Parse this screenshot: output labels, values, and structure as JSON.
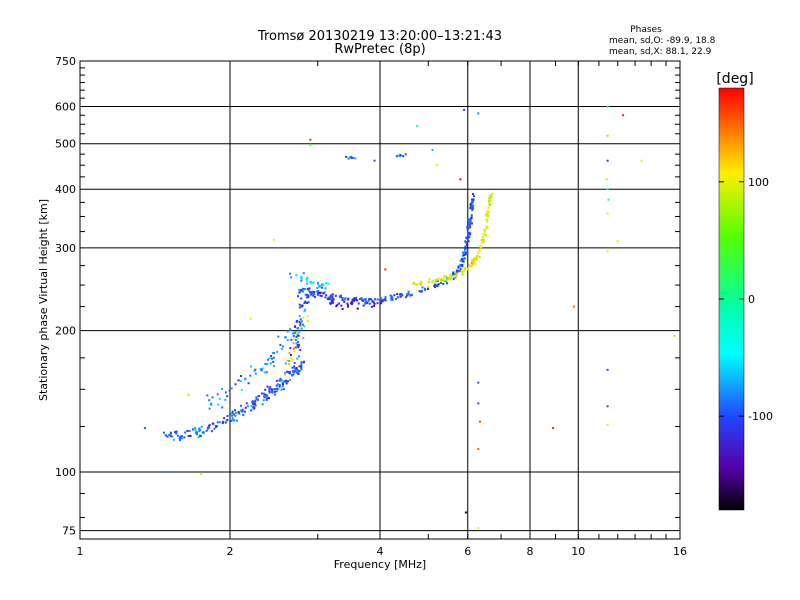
{
  "chart_data": {
    "type": "scatter",
    "title": "Tromsø 20130219 13:20:00–13:21:43",
    "subtitle": "RwPretec (8p)",
    "xlabel": "Frequency [MHz]",
    "ylabel": "Stationary phase Virtual Height [km]",
    "x_scale": "log",
    "y_scale": "log",
    "xlim": [
      1,
      16
    ],
    "ylim": [
      72,
      750
    ],
    "x_ticks": [
      1,
      2,
      4,
      6,
      8,
      10,
      16
    ],
    "x_tick_labels": [
      "1",
      "2",
      "4",
      "6",
      "8",
      "10",
      "16"
    ],
    "y_ticks": [
      75,
      100,
      200,
      300,
      400,
      500,
      600,
      750
    ],
    "y_tick_labels": [
      "75",
      "100",
      "200",
      "300",
      "400",
      "500",
      "600",
      "750"
    ],
    "grid": true,
    "stats": {
      "heading": "Phases",
      "line_o": "mean, sd,O: -89.9, 18.8",
      "line_x": "mean, sd,X:  88.1, 22.9"
    },
    "colorbar": {
      "label": "[deg]",
      "range": [
        -180,
        180
      ],
      "ticks": [
        100,
        0,
        -100
      ],
      "tick_labels": [
        "100",
        "0",
        "-100"
      ]
    },
    "traces": [
      {
        "segments": [
          [
            1.5,
            122
          ],
          [
            1.6,
            119
          ],
          [
            1.75,
            122
          ],
          [
            1.9,
            126
          ],
          [
            2.05,
            132
          ],
          [
            2.2,
            138
          ],
          [
            2.35,
            145
          ],
          [
            2.5,
            152
          ],
          [
            2.65,
            160
          ],
          [
            2.8,
            170
          ]
        ],
        "phase": -95,
        "count": 200,
        "jitter_x": 0.025,
        "jitter_y": 0.035
      },
      {
        "segments": [
          [
            1.8,
            140
          ],
          [
            2.0,
            148
          ],
          [
            2.2,
            160
          ],
          [
            2.4,
            172
          ],
          [
            2.6,
            190
          ],
          [
            2.75,
            205
          ]
        ],
        "phase": -85,
        "count": 70,
        "jitter_x": 0.045,
        "jitter_y": 0.06
      },
      {
        "segments": [
          [
            2.6,
            155
          ],
          [
            2.7,
            180
          ],
          [
            2.75,
            205
          ],
          [
            2.8,
            230
          ],
          [
            2.9,
            245
          ]
        ],
        "phase": -95,
        "count": 55,
        "jitter_x": 0.03,
        "jitter_y": 0.05
      },
      {
        "segments": [
          [
            2.55,
            165
          ],
          [
            2.65,
            180
          ],
          [
            2.75,
            195
          ],
          [
            2.85,
            215
          ]
        ],
        "phase": 110,
        "count": 18,
        "jitter_x": 0.02,
        "jitter_y": 0.05
      },
      {
        "segments": [
          [
            2.65,
            265
          ],
          [
            2.9,
            255
          ],
          [
            3.1,
            246
          ]
        ],
        "phase": -60,
        "count": 30,
        "jitter_x": 0.03,
        "jitter_y": 0.03
      },
      {
        "segments": [
          [
            2.75,
            245
          ],
          [
            3.0,
            240
          ],
          [
            3.3,
            235
          ],
          [
            3.6,
            231
          ],
          [
            4.0,
            232
          ],
          [
            4.5,
            238
          ],
          [
            5.0,
            246
          ],
          [
            5.4,
            255
          ],
          [
            5.7,
            265
          ],
          [
            5.85,
            280
          ],
          [
            5.95,
            300
          ],
          [
            6.05,
            330
          ],
          [
            6.1,
            360
          ],
          [
            6.15,
            390
          ]
        ],
        "phase": -100,
        "count": 260,
        "jitter_x": 0.012,
        "jitter_y": 0.018
      },
      {
        "segments": [
          [
            3.0,
            240
          ],
          [
            3.3,
            228
          ],
          [
            3.6,
            225
          ],
          [
            4.0,
            228
          ]
        ],
        "phase": -120,
        "count": 35,
        "jitter_x": 0.02,
        "jitter_y": 0.02
      },
      {
        "segments": [
          [
            4.6,
            252
          ],
          [
            5.0,
            253
          ],
          [
            5.4,
            258
          ],
          [
            5.8,
            265
          ],
          [
            6.1,
            275
          ],
          [
            6.3,
            290
          ],
          [
            6.45,
            315
          ],
          [
            6.55,
            340
          ],
          [
            6.62,
            370
          ],
          [
            6.7,
            390
          ]
        ],
        "phase": 95,
        "count": 130,
        "jitter_x": 0.01,
        "jitter_y": 0.02
      },
      {
        "segments": [
          [
            3.4,
            470
          ],
          [
            3.6,
            462
          ]
        ],
        "phase": -100,
        "count": 8,
        "jitter_x": 0.01,
        "jitter_y": 0.01
      },
      {
        "segments": [
          [
            4.3,
            468
          ],
          [
            4.6,
            480
          ]
        ],
        "phase": -90,
        "count": 7,
        "jitter_x": 0.01,
        "jitter_y": 0.01
      }
    ],
    "isolated_points": [
      {
        "x": 1.35,
        "y": 124,
        "phase": -95
      },
      {
        "x": 1.48,
        "y": 100,
        "phase": -80
      },
      {
        "x": 1.65,
        "y": 146,
        "phase": 120
      },
      {
        "x": 1.75,
        "y": 99,
        "phase": 110
      },
      {
        "x": 2.2,
        "y": 212,
        "phase": 110
      },
      {
        "x": 2.45,
        "y": 312,
        "phase": 105
      },
      {
        "x": 2.9,
        "y": 510,
        "phase": 170
      },
      {
        "x": 2.9,
        "y": 497,
        "phase": 45
      },
      {
        "x": 3.9,
        "y": 460,
        "phase": -100
      },
      {
        "x": 4.1,
        "y": 270,
        "phase": 170
      },
      {
        "x": 4.75,
        "y": 545,
        "phase": -30
      },
      {
        "x": 5.1,
        "y": 485,
        "phase": -70
      },
      {
        "x": 5.2,
        "y": 450,
        "phase": 100
      },
      {
        "x": 5.9,
        "y": 590,
        "phase": -110
      },
      {
        "x": 5.8,
        "y": 420,
        "phase": 180
      },
      {
        "x": 5.95,
        "y": 82,
        "phase": -170
      },
      {
        "x": 6.3,
        "y": 580,
        "phase": -80
      },
      {
        "x": 6.3,
        "y": 155,
        "phase": -100
      },
      {
        "x": 6.3,
        "y": 140,
        "phase": -100
      },
      {
        "x": 6.35,
        "y": 128,
        "phase": 160
      },
      {
        "x": 6.3,
        "y": 112,
        "phase": 150
      },
      {
        "x": 6.3,
        "y": 76,
        "phase": 110
      },
      {
        "x": 8.9,
        "y": 124,
        "phase": 170
      },
      {
        "x": 9.8,
        "y": 225,
        "phase": 150
      },
      {
        "x": 11.45,
        "y": 600,
        "phase": -20
      },
      {
        "x": 11.45,
        "y": 520,
        "phase": 60
      },
      {
        "x": 11.45,
        "y": 460,
        "phase": -110
      },
      {
        "x": 11.4,
        "y": 420,
        "phase": 90
      },
      {
        "x": 11.45,
        "y": 400,
        "phase": -20
      },
      {
        "x": 11.5,
        "y": 380,
        "phase": 20
      },
      {
        "x": 11.45,
        "y": 355,
        "phase": 110
      },
      {
        "x": 11.45,
        "y": 295,
        "phase": 110
      },
      {
        "x": 11.45,
        "y": 165,
        "phase": -100
      },
      {
        "x": 11.45,
        "y": 138,
        "phase": -100
      },
      {
        "x": 11.45,
        "y": 126,
        "phase": 110
      },
      {
        "x": 12.0,
        "y": 310,
        "phase": 100
      },
      {
        "x": 12.3,
        "y": 575,
        "phase": 170
      },
      {
        "x": 13.4,
        "y": 460,
        "phase": 110
      },
      {
        "x": 15.6,
        "y": 195,
        "phase": 120
      }
    ]
  }
}
